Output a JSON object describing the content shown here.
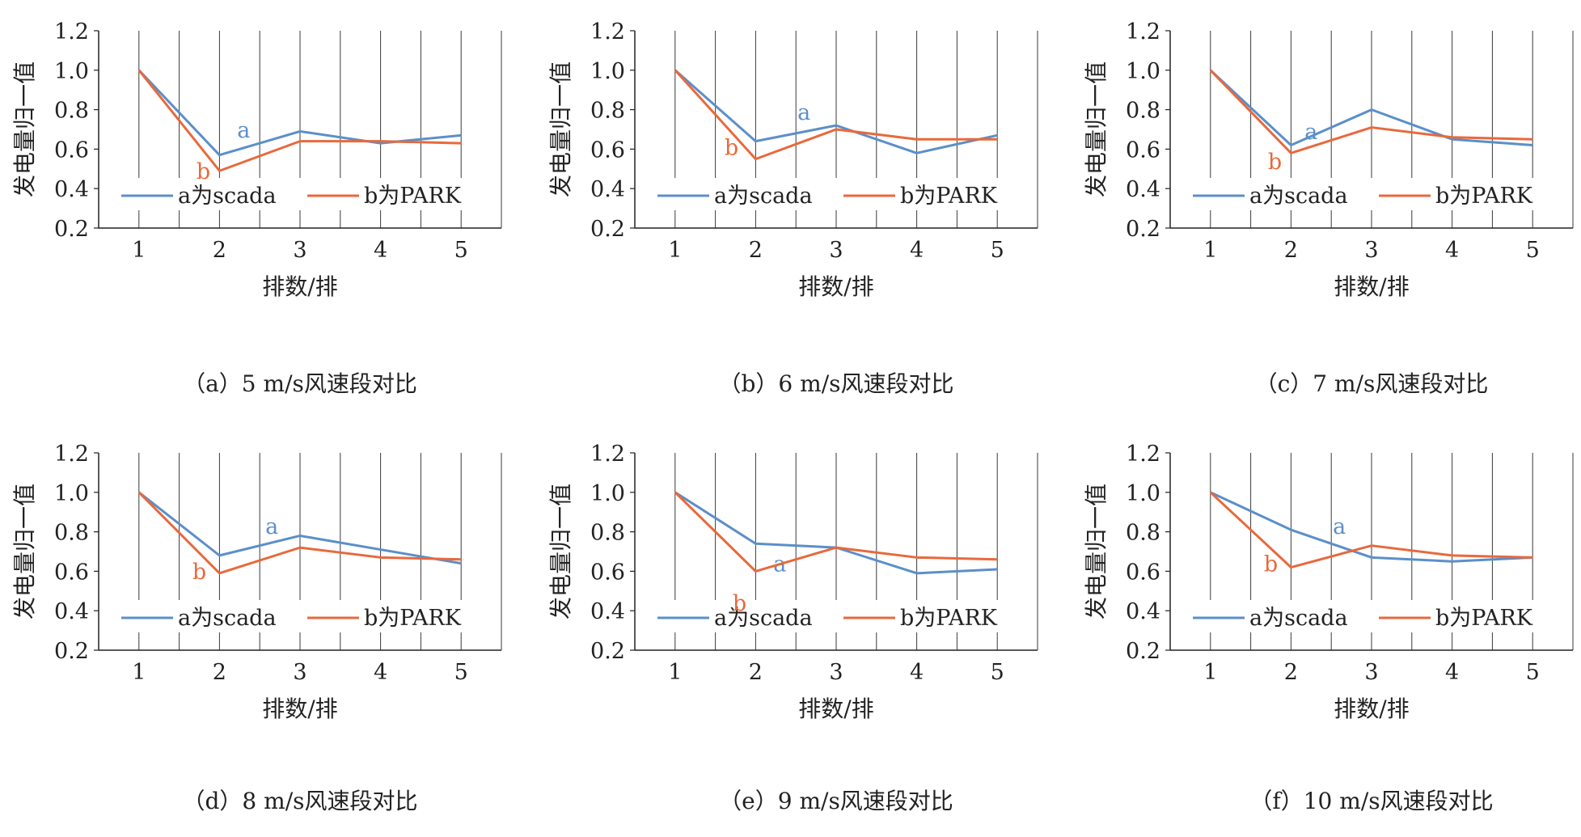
{
  "chart_data": [
    {
      "type": "line",
      "caption": "（a）5 m/s风速段对比",
      "xlabel": "排数/排",
      "ylabel": "发电量归一值",
      "categories": [
        "1",
        "2",
        "3",
        "4",
        "5"
      ],
      "ylim": [
        0.2,
        1.2
      ],
      "yticks": [
        "0.2",
        "0.4",
        "0.6",
        "0.8",
        "1.0",
        "1.2"
      ],
      "grid": "vertical",
      "legend": "bottom",
      "series": [
        {
          "name": "a为scada",
          "values": [
            1.0,
            0.57,
            0.69,
            0.63,
            0.67
          ],
          "color": "#5b8fc9",
          "marker_label": "a"
        },
        {
          "name": "b为PARK",
          "values": [
            1.0,
            0.49,
            0.64,
            0.64,
            0.63
          ],
          "color": "#e8693c",
          "marker_label": "b"
        }
      ]
    },
    {
      "type": "line",
      "caption": "（b）6 m/s风速段对比",
      "xlabel": "排数/排",
      "ylabel": "发电量归一值",
      "categories": [
        "1",
        "2",
        "3",
        "4",
        "5"
      ],
      "ylim": [
        0.2,
        1.2
      ],
      "yticks": [
        "0.2",
        "0.4",
        "0.6",
        "0.8",
        "1.0",
        "1.2"
      ],
      "grid": "vertical",
      "legend": "bottom",
      "series": [
        {
          "name": "a为scada",
          "values": [
            1.0,
            0.64,
            0.72,
            0.58,
            0.67
          ],
          "color": "#5b8fc9",
          "marker_label": "a"
        },
        {
          "name": "b为PARK",
          "values": [
            1.0,
            0.55,
            0.7,
            0.65,
            0.65
          ],
          "color": "#e8693c",
          "marker_label": "b"
        }
      ]
    },
    {
      "type": "line",
      "caption": "（c）7 m/s风速段对比",
      "xlabel": "排数/排",
      "ylabel": "发电量归一值",
      "categories": [
        "1",
        "2",
        "3",
        "4",
        "5"
      ],
      "ylim": [
        0.2,
        1.2
      ],
      "yticks": [
        "0.2",
        "0.4",
        "0.6",
        "0.8",
        "1.0",
        "1.2"
      ],
      "grid": "vertical",
      "legend": "bottom",
      "series": [
        {
          "name": "a为scada",
          "values": [
            1.0,
            0.62,
            0.8,
            0.65,
            0.62
          ],
          "color": "#5b8fc9",
          "marker_label": "a"
        },
        {
          "name": "b为PARK",
          "values": [
            1.0,
            0.58,
            0.71,
            0.66,
            0.65
          ],
          "color": "#e8693c",
          "marker_label": "b"
        }
      ]
    },
    {
      "type": "line",
      "caption": "（d）8 m/s风速段对比",
      "xlabel": "排数/排",
      "ylabel": "发电量归一值",
      "categories": [
        "1",
        "2",
        "3",
        "4",
        "5"
      ],
      "ylim": [
        0.2,
        1.2
      ],
      "yticks": [
        "0.2",
        "0.4",
        "0.6",
        "0.8",
        "1.0",
        "1.2"
      ],
      "grid": "vertical",
      "legend": "bottom",
      "series": [
        {
          "name": "a为scada",
          "values": [
            1.0,
            0.68,
            0.78,
            0.71,
            0.64
          ],
          "color": "#5b8fc9",
          "marker_label": "a"
        },
        {
          "name": "b为PARK",
          "values": [
            1.0,
            0.59,
            0.72,
            0.67,
            0.66
          ],
          "color": "#e8693c",
          "marker_label": "b"
        }
      ]
    },
    {
      "type": "line",
      "caption": "（e）9 m/s风速段对比",
      "xlabel": "排数/排",
      "ylabel": "发电量归一值",
      "categories": [
        "1",
        "2",
        "3",
        "4",
        "5"
      ],
      "ylim": [
        0.2,
        1.2
      ],
      "yticks": [
        "0.2",
        "0.4",
        "0.6",
        "0.8",
        "1.0",
        "1.2"
      ],
      "grid": "vertical",
      "legend": "bottom",
      "series": [
        {
          "name": "a为scada",
          "values": [
            1.0,
            0.74,
            0.72,
            0.59,
            0.61
          ],
          "color": "#5b8fc9",
          "marker_label": "a"
        },
        {
          "name": "b为PARK",
          "values": [
            1.0,
            0.6,
            0.72,
            0.67,
            0.66
          ],
          "color": "#e8693c",
          "marker_label": "b"
        }
      ]
    },
    {
      "type": "line",
      "caption": "（f）10 m/s风速段对比",
      "xlabel": "排数/排",
      "ylabel": "发电量归一值",
      "categories": [
        "1",
        "2",
        "3",
        "4",
        "5"
      ],
      "ylim": [
        0.2,
        1.2
      ],
      "yticks": [
        "0.2",
        "0.4",
        "0.6",
        "0.8",
        "1.0",
        "1.2"
      ],
      "grid": "vertical",
      "legend": "bottom",
      "series": [
        {
          "name": "a为scada",
          "values": [
            1.0,
            0.81,
            0.67,
            0.65,
            0.67
          ],
          "color": "#5b8fc9",
          "marker_label": "a"
        },
        {
          "name": "b为PARK",
          "values": [
            1.0,
            0.62,
            0.73,
            0.68,
            0.67
          ],
          "color": "#e8693c",
          "marker_label": "b"
        }
      ]
    }
  ]
}
